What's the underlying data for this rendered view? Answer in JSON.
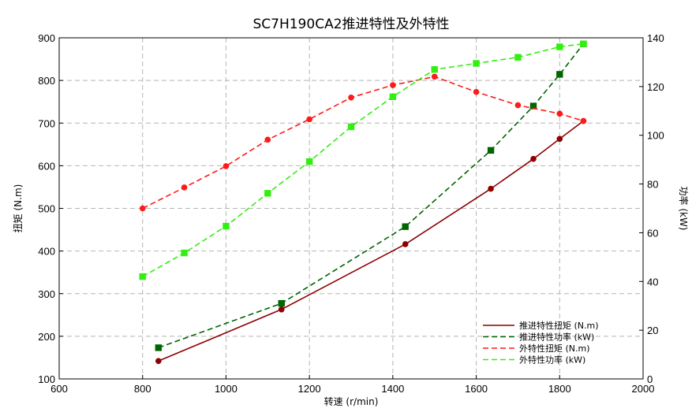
{
  "chart_data": {
    "type": "line",
    "title": "SC7H190CA2推进特性及外特性",
    "xlabel": "转速 (r/min)",
    "ylabel_left": "扭矩 (N.m)",
    "ylabel_right": "功率 (kW)",
    "xlim": [
      600,
      2000
    ],
    "ylim_left": [
      100,
      900
    ],
    "ylim_right": [
      0,
      140
    ],
    "xticks": [
      600,
      800,
      1000,
      1200,
      1400,
      1600,
      1800,
      2000
    ],
    "yticks_left": [
      100,
      200,
      300,
      400,
      500,
      600,
      700,
      800,
      900
    ],
    "yticks_right": [
      0,
      20,
      40,
      60,
      80,
      100,
      120,
      140
    ],
    "grid": true,
    "legend_position": "bottom-right",
    "series": [
      {
        "name": "推进特性扭矩 (N.m)",
        "axis": "left",
        "color": "#8b0000",
        "dash": "solid",
        "marker": "circle",
        "x": [
          838,
          1133,
          1430,
          1635,
          1737,
          1800,
          1857
        ],
        "y": [
          142,
          263,
          416,
          546,
          616,
          663,
          705
        ]
      },
      {
        "name": "推进特性功率 (kW)",
        "axis": "right",
        "color": "#006400",
        "dash": "dashed",
        "marker": "square",
        "x": [
          838,
          1133,
          1430,
          1635,
          1737,
          1800,
          1857
        ],
        "y": [
          12.8,
          31.0,
          62.5,
          93.8,
          112.0,
          125.0,
          137.5
        ]
      },
      {
        "name": "外特性扭矩 (N.m)",
        "axis": "left",
        "color": "#ff1a1a",
        "dash": "dashed",
        "marker": "circle",
        "x": [
          800,
          900,
          1000,
          1100,
          1200,
          1300,
          1400,
          1500,
          1600,
          1700,
          1800,
          1857
        ],
        "y": [
          500,
          549,
          599,
          661,
          709,
          760,
          789,
          809,
          773,
          742,
          722,
          705
        ]
      },
      {
        "name": "外特性功率 (kW)",
        "axis": "right",
        "color": "#33ee11",
        "dash": "dashed",
        "marker": "square",
        "x": [
          800,
          900,
          1000,
          1100,
          1200,
          1300,
          1400,
          1500,
          1600,
          1700,
          1800,
          1857
        ],
        "y": [
          42.0,
          51.7,
          62.7,
          76.2,
          89.2,
          103.5,
          115.8,
          127.0,
          129.5,
          132.0,
          136.3,
          137.5
        ]
      }
    ]
  }
}
